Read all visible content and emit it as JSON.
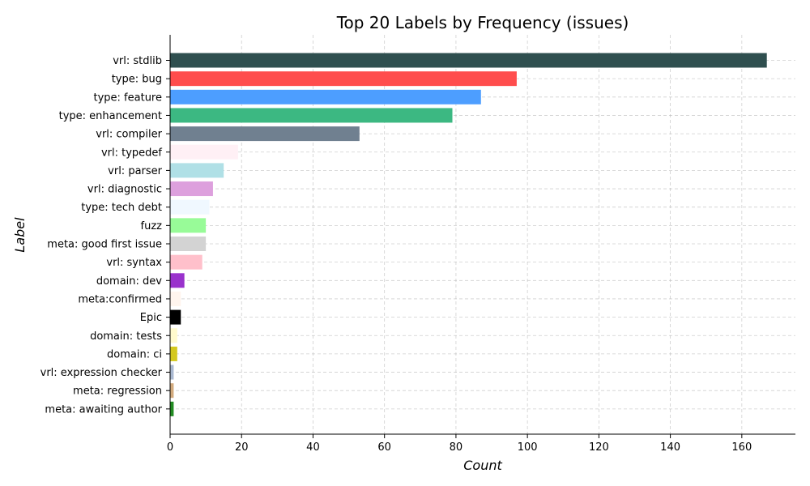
{
  "chart_data": {
    "type": "bar",
    "orientation": "horizontal",
    "title": "Top 20 Labels by Frequency (issues)",
    "xlabel": "Count",
    "ylabel": "Label",
    "xlim": [
      0,
      175
    ],
    "xticks": [
      0,
      20,
      40,
      60,
      80,
      100,
      120,
      140,
      160
    ],
    "grid": true,
    "categories": [
      "vrl: stdlib",
      "type: bug",
      "type: feature",
      "type: enhancement",
      "vrl: compiler",
      "vrl: typedef",
      "vrl: parser",
      "vrl: diagnostic",
      "type: tech debt",
      "fuzz",
      "meta: good first issue",
      "vrl: syntax",
      "domain: dev",
      "meta:confirmed",
      "Epic",
      "domain: tests",
      "domain: ci",
      "vrl: expression checker",
      "meta: regression",
      "meta: awaiting author"
    ],
    "values": [
      167,
      97,
      87,
      79,
      53,
      19,
      15,
      12,
      11,
      10,
      10,
      9,
      4,
      3,
      3,
      2,
      2,
      1,
      1,
      1
    ],
    "colors": [
      "#2f4f4f",
      "#ff4d4d",
      "#4d9eff",
      "#3cb882",
      "#708090",
      "#fff0f5",
      "#b0e0e6",
      "#dda0dd",
      "#f0f8ff",
      "#98fb98",
      "#d3d3d3",
      "#ffc0cb",
      "#9932cc",
      "#fff5ee",
      "#000000",
      "#fffacd",
      "#d4c81e",
      "#a9b8d0",
      "#d2aa7d",
      "#228b22"
    ]
  }
}
